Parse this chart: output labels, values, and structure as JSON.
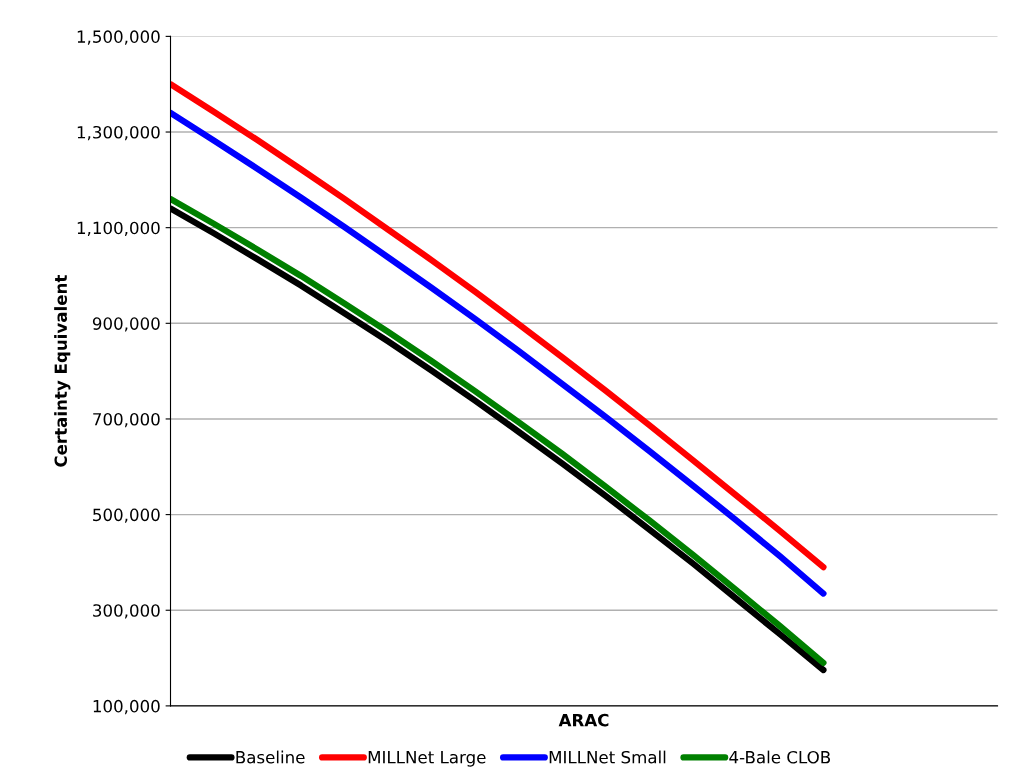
{
  "chart_data": {
    "type": "line",
    "xlabel": "ARAC",
    "ylabel": "Certainty Equivalent",
    "categories": [
      null,
      null,
      null,
      null,
      null,
      null,
      null,
      null,
      null,
      null,
      null,
      null,
      null,
      null,
      null,
      null,
      null,
      null,
      null,
      null
    ],
    "series": [
      {
        "name": "Baseline",
        "color": "#000000",
        "values": [
          1140000,
          1088000,
          1034000,
          979000,
          921000,
          862000,
          801000,
          738000,
          673000,
          607000,
          539000,
          469000,
          398000,
          324000,
          250000,
          175000,
          null,
          null,
          null,
          null
        ]
      },
      {
        "name": "MILLNet Large",
        "color": "#ff0000",
        "values": [
          1400000,
          1342000,
          1283000,
          1222000,
          1160000,
          1096000,
          1032000,
          966000,
          898000,
          829000,
          759000,
          687000,
          614000,
          540000,
          466000,
          390000,
          null,
          null,
          null,
          null
        ]
      },
      {
        "name": "MILLNet Small",
        "color": "#0000ff",
        "values": [
          1340000,
          1282000,
          1223000,
          1163000,
          1101000,
          1038000,
          974000,
          909000,
          842000,
          773000,
          704000,
          633000,
          561000,
          488000,
          413000,
          335000,
          null,
          null,
          null,
          null
        ]
      },
      {
        "name": "4-Bale CLOB",
        "color": "#008000",
        "values": [
          1160000,
          1108000,
          1054000,
          999000,
          941000,
          882000,
          821000,
          758000,
          693000,
          627000,
          558000,
          488000,
          416000,
          342000,
          267000,
          190000,
          null,
          null,
          null,
          null
        ]
      }
    ],
    "ylim": [
      100000,
      1500000
    ],
    "yticks": [
      {
        "value": 100000,
        "label": "100,000"
      },
      {
        "value": 300000,
        "label": "300,000"
      },
      {
        "value": 500000,
        "label": "500,000"
      },
      {
        "value": 700000,
        "label": "700,000"
      },
      {
        "value": 900000,
        "label": "900,000"
      },
      {
        "value": 1100000,
        "label": "1,100,000"
      },
      {
        "value": 1300000,
        "label": "1,300,000"
      },
      {
        "value": 1500000,
        "label": "1,500,000"
      }
    ],
    "grid": "y",
    "legend": "bottom",
    "line_style": "solid"
  }
}
